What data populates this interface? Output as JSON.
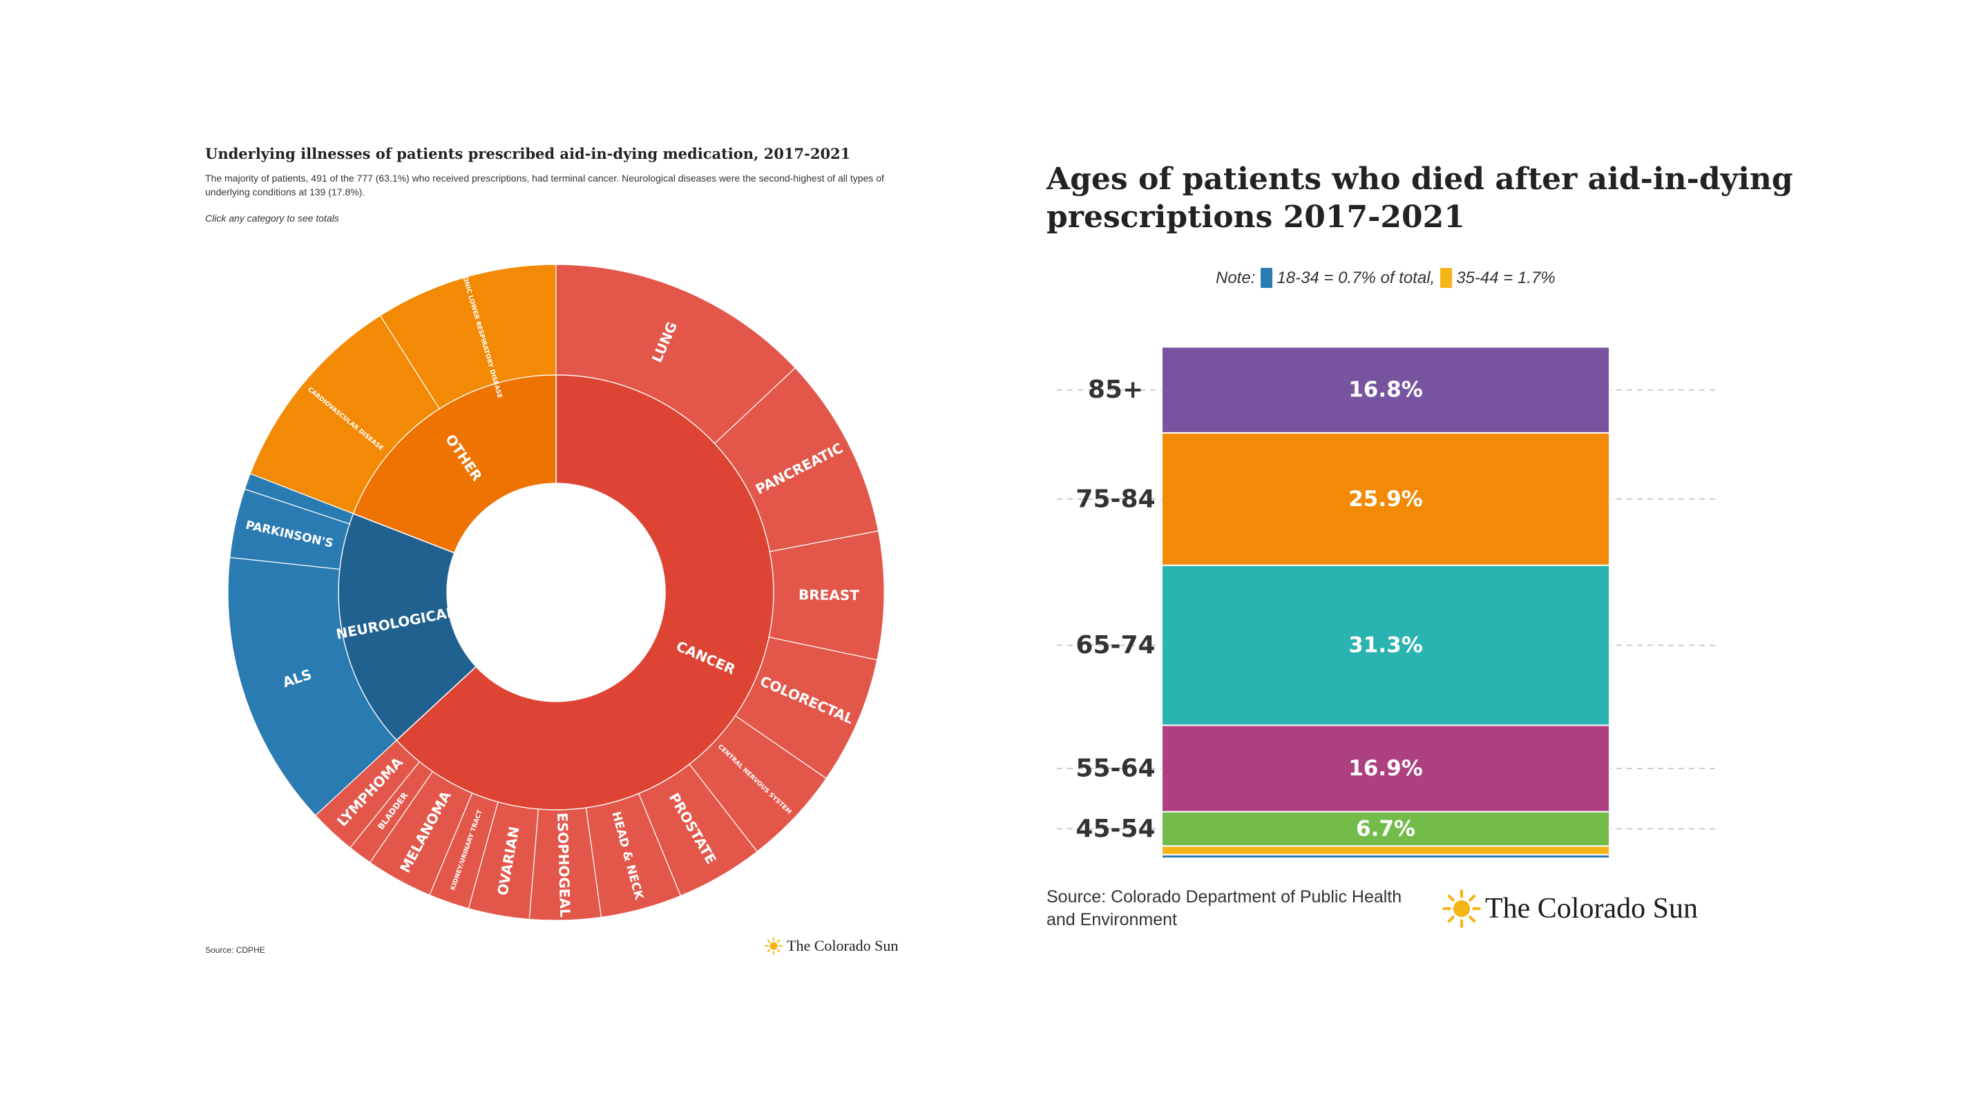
{
  "left_chart": {
    "title": "Underlying illnesses of patients prescribed aid-in-dying medication, 2017-2021",
    "subtitle": "The majority of patients, 491 of the 777 (63.1%) who received prescriptions, had terminal cancer. Neurological diseases were the second-highest of all types of underlying conditions at 139 (17.8%).",
    "hint": "Click any category to see totals",
    "source": "Source: CDPHE",
    "brand": "The Colorado Sun"
  },
  "right_chart": {
    "title": "Ages of patients who died after aid-in-dying prescriptions 2017-2021",
    "note_prefix": "Note:",
    "note_item1": "18-34 = 0.7% of total,",
    "note_item2": "35-44 = 1.7%",
    "source": "Source: Colorado Department of Public Health and Environment",
    "brand": "The Colorado Sun"
  },
  "colors": {
    "cancer_inner": "#dd4433",
    "cancer_outer": "#e2574a",
    "neuro_inner": "#21618f",
    "neuro_outer": "#2b7bb3",
    "other_inner": "#ef7300",
    "other_outer": "#f28a05",
    "purple": "#7754a0",
    "orange": "#f28a05",
    "teal": "#2ab3b0",
    "magenta": "#ad4080",
    "green": "#74bc4a",
    "yellow": "#f5b418",
    "blue": "#2b7bb3",
    "sun": "#f5b418"
  },
  "chart_data": [
    {
      "type": "sunburst",
      "inner": [
        {
          "label": "CANCER",
          "share": 0.631,
          "color": "cancer_inner"
        },
        {
          "label": "NEUROLOGICAL",
          "share": 0.178,
          "color": "neuro_inner"
        },
        {
          "label": "OTHER",
          "share": 0.191,
          "color": "other_inner"
        }
      ],
      "outer": [
        {
          "parent": "CANCER",
          "label": "LUNG",
          "share": 0.13
        },
        {
          "parent": "CANCER",
          "label": "PANCREATIC",
          "share": 0.09
        },
        {
          "parent": "CANCER",
          "label": "BREAST",
          "share": 0.063
        },
        {
          "parent": "CANCER",
          "label": "COLORECTAL",
          "share": 0.063
        },
        {
          "parent": "CANCER",
          "label": "CENTRAL NERVOUS SYSTEM",
          "share": 0.049
        },
        {
          "parent": "CANCER",
          "label": "PROSTATE",
          "share": 0.043
        },
        {
          "parent": "CANCER",
          "label": "HEAD & NECK",
          "share": 0.04
        },
        {
          "parent": "CANCER",
          "label": "ESOPHOGEAL",
          "share": 0.035
        },
        {
          "parent": "CANCER",
          "label": "OVARIAN",
          "share": 0.03
        },
        {
          "parent": "CANCER",
          "label": "KIDNEY/URINARY TRACT",
          "share": 0.02
        },
        {
          "parent": "CANCER",
          "label": "MELANOMA",
          "share": 0.033
        },
        {
          "parent": "CANCER",
          "label": "BLADDER",
          "share": 0.012
        },
        {
          "parent": "CANCER",
          "label": "LYMPHOMA",
          "share": 0.023
        },
        {
          "parent": "NEUROLOGICAL",
          "label": "ALS",
          "share": 0.136
        },
        {
          "parent": "NEUROLOGICAL",
          "label": "PARKINSON'S",
          "share": 0.034
        },
        {
          "parent": "NEUROLOGICAL",
          "label": "",
          "share": 0.008
        },
        {
          "parent": "OTHER",
          "label": "CARDIOVASCULAR DISEASE",
          "share": 0.101
        },
        {
          "parent": "OTHER",
          "label": "CHRONIC LOWER RESPIRATORY DISEASE",
          "share": 0.09
        }
      ]
    },
    {
      "type": "bar",
      "stacked": true,
      "categories": [
        "18-34",
        "35-44",
        "45-54",
        "55-64",
        "65-74",
        "75-84",
        "85+"
      ],
      "values": [
        0.7,
        1.7,
        6.7,
        16.9,
        31.3,
        25.9,
        16.8
      ],
      "value_labels": [
        "",
        "",
        "6.7%",
        "16.9%",
        "31.3%",
        "25.9%",
        "16.8%"
      ],
      "tick_labels": [
        "",
        "",
        "45-54",
        "55-64",
        "65-74",
        "75-84",
        "85+"
      ],
      "colors": [
        "blue",
        "yellow",
        "green",
        "magenta",
        "teal",
        "orange",
        "purple"
      ],
      "grid": true
    }
  ]
}
